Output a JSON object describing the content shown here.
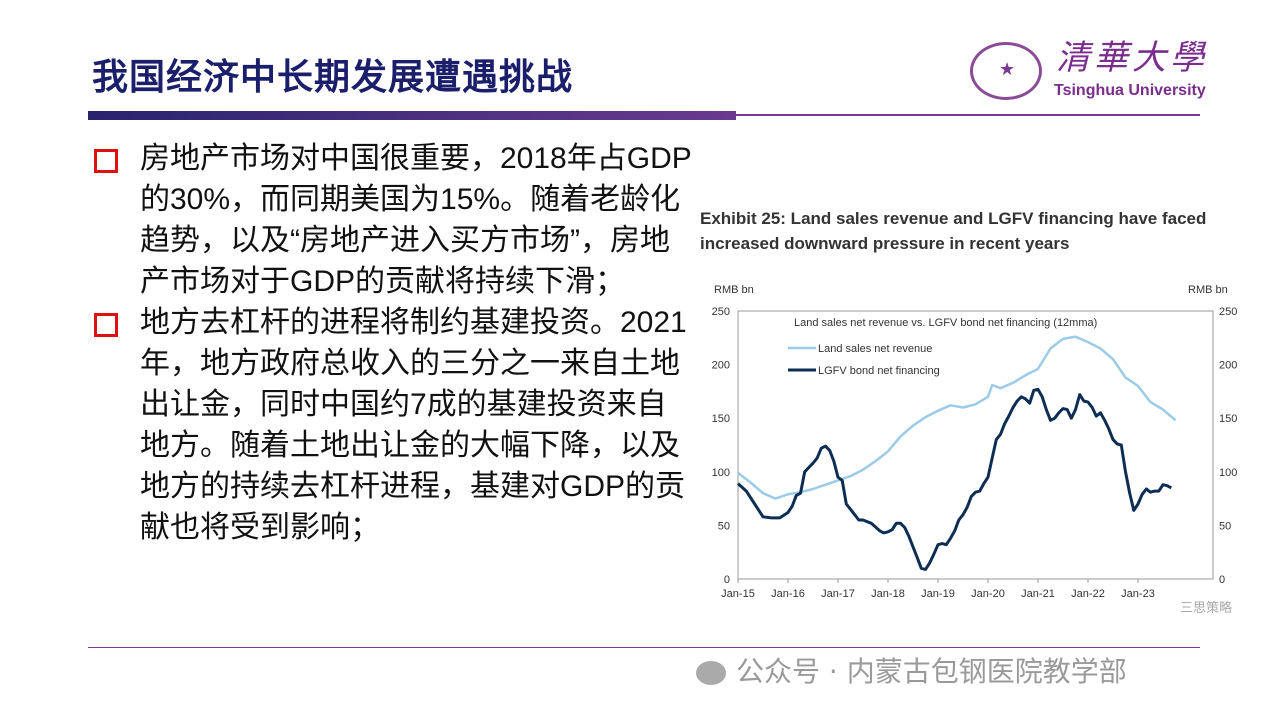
{
  "title": "我国经济中长期发展遭遇挑战",
  "logo": {
    "cn": "清華大學",
    "en": "Tsinghua University"
  },
  "bullets": [
    "房地产市场对中国很重要，2018年占GDP的30%，而同期美国为15%。随着老龄化趋势，以及“房地产进入买方市场”，房地产市场对于GDP的贡献将持续下滑；",
    "地方去杠杆的进程将制约基建投资。2021年，地方政府总收入的三分之一来自土地出让金，同时中国约7成的基建投资来自地方。随着土地出让金的大幅下降，以及地方的持续去杠杆进程，基建对GDP的贡献也将受到影响；"
  ],
  "exhibit": {
    "line1": "Exhibit 25: Land sales revenue and LGFV financing have faced",
    "line2": "increased downward pressure in recent years"
  },
  "watermark": "公众号 · 内蒙古包钢医院教学部",
  "chart_watermark": "三思策略",
  "chart_data": {
    "type": "line",
    "title": "Land sales net revenue vs. LGFV bond net financing (12mma)",
    "ylabel_left": "RMB bn",
    "ylabel_right": "RMB bn",
    "ylim": [
      0,
      250
    ],
    "yticks": [
      0,
      50,
      100,
      150,
      200,
      250
    ],
    "xticks": [
      "Jan-15",
      "Jan-16",
      "Jan-17",
      "Jan-18",
      "Jan-19",
      "Jan-20",
      "Jan-21",
      "Jan-22",
      "Jan-23"
    ],
    "x_unit": "months since Jan-15",
    "legend": "top-left",
    "series": [
      {
        "name": "Land sales net revenue",
        "color": "#9ccbe8",
        "x": [
          0,
          3,
          6,
          9,
          12,
          15,
          18,
          21,
          24,
          27,
          30,
          33,
          36,
          39,
          42,
          45,
          48,
          51,
          54,
          57,
          60,
          61,
          63,
          66,
          69,
          72,
          75,
          78,
          81,
          84,
          87,
          90,
          93,
          96,
          99,
          102,
          105
        ],
        "y": [
          99,
          90,
          80,
          75,
          79,
          81,
          84,
          88,
          92,
          96,
          102,
          110,
          119,
          133,
          143,
          151,
          157,
          162,
          160,
          163,
          170,
          181,
          178,
          183,
          190,
          196,
          215,
          224,
          226,
          221,
          215,
          205,
          188,
          180,
          165,
          158,
          148
        ]
      },
      {
        "name": "LGFV bond net financing",
        "color": "#0d2d52",
        "x": [
          0,
          2,
          4,
          6,
          8,
          10,
          12,
          13,
          14,
          15,
          16,
          17,
          18,
          19,
          20,
          21,
          22,
          23,
          24,
          25,
          26,
          27,
          28,
          29,
          30,
          32,
          34,
          35,
          36,
          37,
          38,
          39,
          40,
          41,
          42,
          43,
          44,
          45,
          46,
          47,
          48,
          49,
          50,
          51,
          52,
          53,
          54,
          55,
          56,
          57,
          58,
          59,
          60,
          61,
          62,
          63,
          64,
          65,
          66,
          67,
          68,
          69,
          70,
          71,
          72,
          73,
          74,
          75,
          76,
          77,
          78,
          79,
          80,
          81,
          82,
          83,
          84,
          85,
          86,
          87,
          88,
          89,
          90,
          91,
          92,
          93,
          94,
          95,
          96,
          97,
          98,
          99,
          100,
          101,
          102,
          103,
          104
        ],
        "y": [
          89,
          82,
          70,
          58,
          57,
          57,
          62,
          68,
          78,
          80,
          100,
          104,
          108,
          113,
          122,
          124,
          120,
          110,
          95,
          92,
          70,
          65,
          60,
          55,
          55,
          52,
          45,
          43,
          44,
          46,
          52,
          52,
          48,
          40,
          30,
          20,
          10,
          9,
          15,
          23,
          32,
          33,
          32,
          38,
          45,
          55,
          60,
          67,
          77,
          81,
          82,
          89,
          95,
          113,
          130,
          135,
          145,
          152,
          160,
          166,
          170,
          168,
          164,
          176,
          177,
          170,
          158,
          148,
          150,
          155,
          159,
          158,
          150,
          158,
          172,
          166,
          165,
          160,
          152,
          155,
          148,
          140,
          130,
          126,
          125,
          100,
          80,
          64,
          70,
          79,
          84,
          81,
          82,
          82,
          88,
          87,
          85
        ]
      }
    ]
  }
}
